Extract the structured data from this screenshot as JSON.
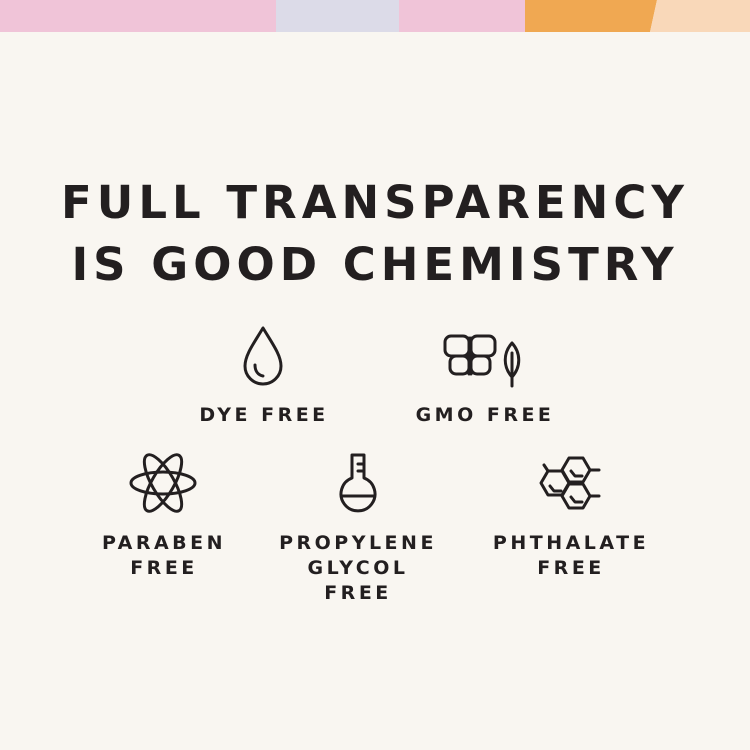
{
  "header": {
    "title_line1": "FULL TRANSPARENCY",
    "title_line2": "IS GOOD CHEMISTRY"
  },
  "colors": {
    "background": "#f9f6f1",
    "text": "#231f20",
    "stripe_pink": "#f0c4d8",
    "stripe_lavender": "#dcdbe8",
    "stripe_orange": "#f0a852",
    "stripe_peach": "#f9d8b9"
  },
  "features": [
    {
      "icon": "water-drop-icon",
      "lines": [
        "DYE FREE"
      ]
    },
    {
      "icon": "butterfly-leaf-icon",
      "lines": [
        "GMO FREE"
      ]
    },
    {
      "icon": "atom-icon",
      "lines": [
        "PARABEN",
        "FREE"
      ]
    },
    {
      "icon": "flask-icon",
      "lines": [
        "PROPYLENE",
        "GLYCOL",
        "FREE"
      ]
    },
    {
      "icon": "molecule-hexagon-icon",
      "lines": [
        "PHTHALATE",
        "FREE"
      ]
    }
  ]
}
